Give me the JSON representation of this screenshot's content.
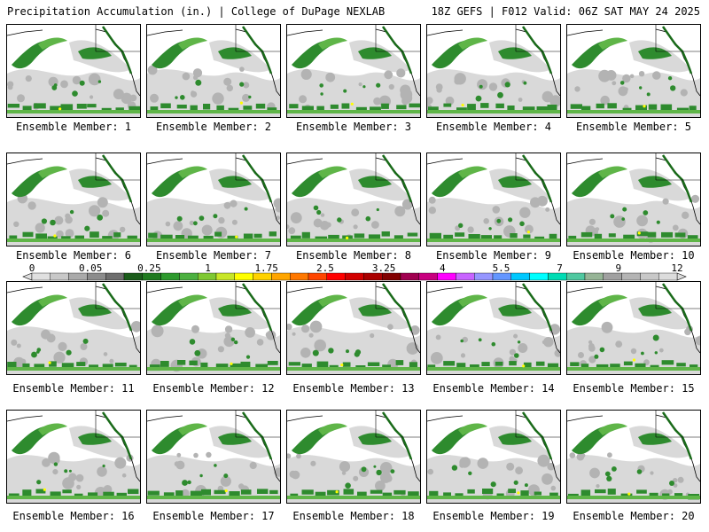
{
  "header": {
    "left": "Precipitation Accumulation (in.) | College of DuPage NEXLAB",
    "right": "18Z GEFS | F012 Valid: 06Z SAT MAY 24 2025"
  },
  "members": [
    {
      "label": "Ensemble Member: 1"
    },
    {
      "label": "Ensemble Member: 2"
    },
    {
      "label": "Ensemble Member: 3"
    },
    {
      "label": "Ensemble Member: 4"
    },
    {
      "label": "Ensemble Member: 5"
    },
    {
      "label": "Ensemble Member: 6"
    },
    {
      "label": "Ensemble Member: 7"
    },
    {
      "label": "Ensemble Member: 8"
    },
    {
      "label": "Ensemble Member: 9"
    },
    {
      "label": "Ensemble Member: 10"
    },
    {
      "label": "Ensemble Member: 11"
    },
    {
      "label": "Ensemble Member: 12"
    },
    {
      "label": "Ensemble Member: 13"
    },
    {
      "label": "Ensemble Member: 14"
    },
    {
      "label": "Ensemble Member: 15"
    },
    {
      "label": "Ensemble Member: 16"
    },
    {
      "label": "Ensemble Member: 17"
    },
    {
      "label": "Ensemble Member: 18"
    },
    {
      "label": "Ensemble Member: 19"
    },
    {
      "label": "Ensemble Member: 20"
    }
  ],
  "colorbar": {
    "labels": [
      "0",
      "0.05",
      "0.25",
      "1",
      "1.75",
      "2.5",
      "3.25",
      "4",
      "5.5",
      "7",
      "9",
      "12"
    ],
    "colors": [
      "#e0e0e0",
      "#c8c8c8",
      "#aaaaaa",
      "#8c8c8c",
      "#6e6e6e",
      "#1a5c1a",
      "#1f7a1f",
      "#2e9a2e",
      "#4cb040",
      "#7fc832",
      "#c8e628",
      "#ffff00",
      "#ffd200",
      "#ffa500",
      "#ff7800",
      "#ff4500",
      "#ff0000",
      "#d20000",
      "#aa0000",
      "#820000",
      "#a00050",
      "#c8007f",
      "#ff00ff",
      "#c864ff",
      "#9696ff",
      "#6496ff",
      "#00c8ff",
      "#00ffff",
      "#00dcb4",
      "#50c8a0",
      "#96b496",
      "#a0a0a0",
      "#b4b4b4",
      "#c8c8c8",
      "#dcdcdc"
    ]
  },
  "map_colors": {
    "light_gray": "#d9d9d9",
    "mid_gray": "#b3b3b3",
    "green": "#2e8b2e",
    "dark_green": "#1a6b1a",
    "light_green": "#5fb548",
    "yellow": "#ffff00",
    "coast": "#000000"
  }
}
